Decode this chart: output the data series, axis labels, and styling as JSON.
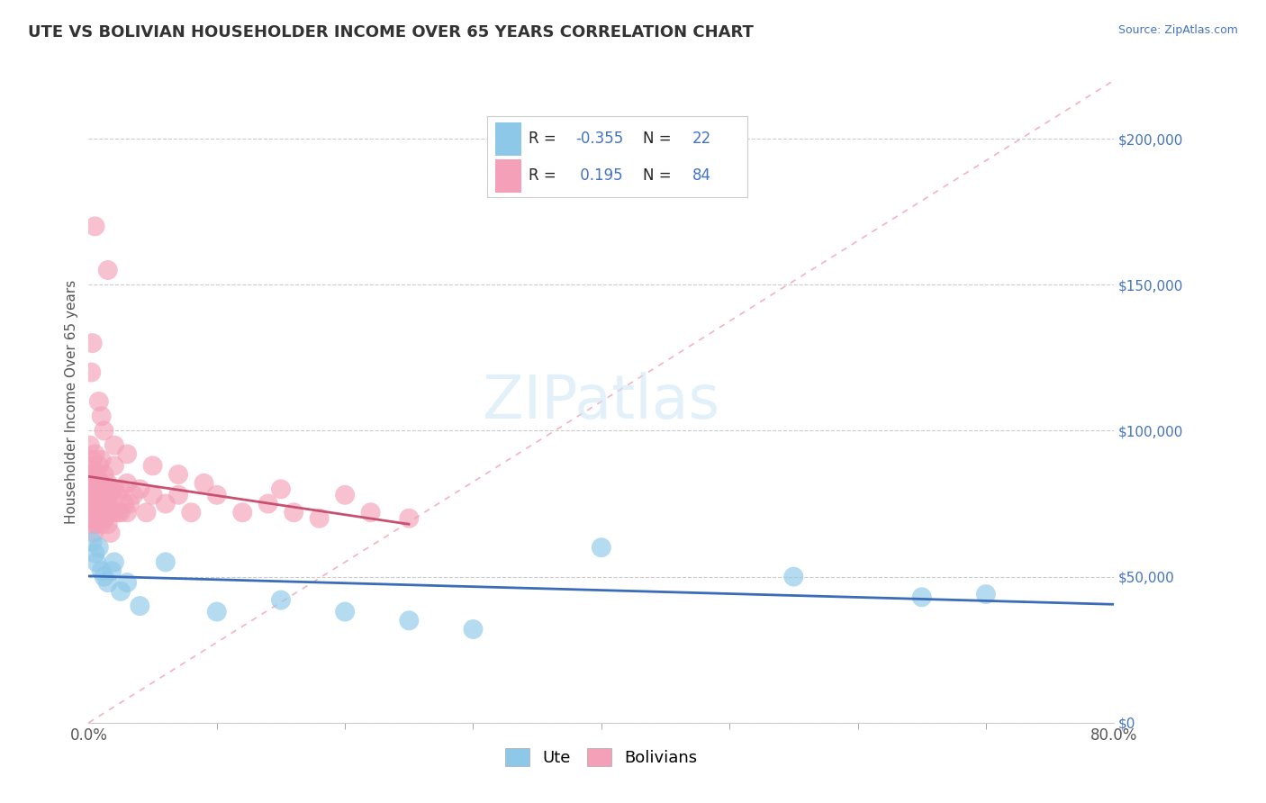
{
  "title": "UTE VS BOLIVIAN HOUSEHOLDER INCOME OVER 65 YEARS CORRELATION CHART",
  "source": "Source: ZipAtlas.com",
  "ylabel": "Householder Income Over 65 years",
  "ute_color": "#8EC8E8",
  "bolivian_color": "#F4A0B8",
  "ute_line_color": "#3B6CB7",
  "bolivian_line_color": "#C85070",
  "value_label_color": "#4472C4",
  "r_ute": -0.355,
  "n_ute": 22,
  "r_bolivian": 0.195,
  "n_bolivian": 84,
  "xlim": [
    0,
    80
  ],
  "ylim": [
    0,
    220000
  ],
  "ytick_vals": [
    0,
    50000,
    100000,
    150000,
    200000
  ],
  "xtick_vals": [
    0,
    80
  ],
  "xtick_labels": [
    "0.0%",
    "80.0%"
  ],
  "grid_color": "#CCCCCC",
  "background_color": "#FFFFFF",
  "ute_x": [
    0.3,
    0.5,
    0.6,
    0.8,
    1.0,
    1.2,
    1.5,
    1.8,
    2.0,
    2.5,
    3.0,
    4.0,
    6.0,
    10.0,
    15.0,
    20.0,
    25.0,
    30.0,
    40.0,
    55.0,
    65.0,
    70.0
  ],
  "ute_y": [
    62000,
    58000,
    55000,
    60000,
    52000,
    50000,
    48000,
    52000,
    55000,
    45000,
    48000,
    40000,
    55000,
    38000,
    42000,
    38000,
    35000,
    32000,
    60000,
    50000,
    43000,
    44000
  ],
  "bolivian_x": [
    0.1,
    0.1,
    0.1,
    0.2,
    0.2,
    0.2,
    0.3,
    0.3,
    0.3,
    0.3,
    0.4,
    0.4,
    0.4,
    0.4,
    0.5,
    0.5,
    0.5,
    0.5,
    0.6,
    0.6,
    0.6,
    0.7,
    0.7,
    0.8,
    0.8,
    0.8,
    0.9,
    0.9,
    1.0,
    1.0,
    1.0,
    1.0,
    1.1,
    1.2,
    1.2,
    1.3,
    1.3,
    1.4,
    1.5,
    1.5,
    1.5,
    1.6,
    1.7,
    1.7,
    1.8,
    2.0,
    2.0,
    2.0,
    2.2,
    2.3,
    2.5,
    2.5,
    2.8,
    3.0,
    3.0,
    3.2,
    3.5,
    4.0,
    4.5,
    5.0,
    6.0,
    7.0,
    8.0,
    10.0,
    12.0,
    14.0,
    16.0,
    18.0,
    20.0,
    22.0,
    25.0,
    1.5,
    0.5,
    0.3,
    0.2,
    0.8,
    1.0,
    1.2,
    2.0,
    3.0,
    5.0,
    7.0,
    9.0,
    15.0
  ],
  "bolivian_y": [
    95000,
    85000,
    75000,
    88000,
    80000,
    72000,
    90000,
    82000,
    75000,
    68000,
    85000,
    78000,
    70000,
    65000,
    92000,
    85000,
    78000,
    70000,
    82000,
    75000,
    68000,
    85000,
    75000,
    88000,
    80000,
    72000,
    82000,
    75000,
    90000,
    82000,
    75000,
    68000,
    80000,
    85000,
    75000,
    80000,
    70000,
    78000,
    82000,
    75000,
    68000,
    78000,
    72000,
    65000,
    80000,
    88000,
    80000,
    72000,
    78000,
    72000,
    80000,
    72000,
    75000,
    82000,
    72000,
    75000,
    78000,
    80000,
    72000,
    78000,
    75000,
    78000,
    72000,
    78000,
    72000,
    75000,
    72000,
    70000,
    78000,
    72000,
    70000,
    155000,
    170000,
    130000,
    120000,
    110000,
    105000,
    100000,
    95000,
    92000,
    88000,
    85000,
    82000,
    80000
  ]
}
